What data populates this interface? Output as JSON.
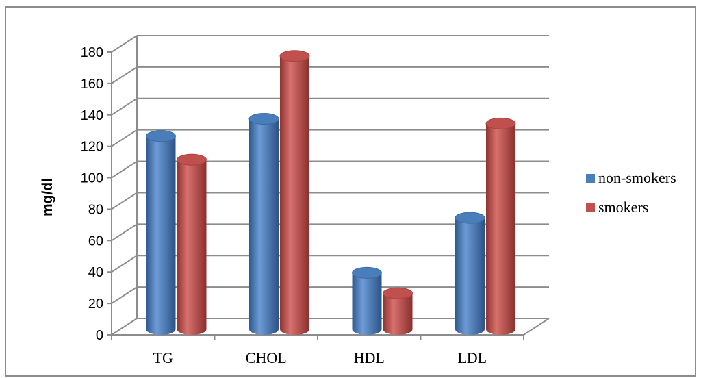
{
  "chart_data": {
    "type": "bar",
    "style": "3d-cylinder",
    "categories": [
      "TG",
      "CHOL",
      "HDL",
      "LDL"
    ],
    "series": [
      {
        "name": "non-smokers",
        "values": [
          123,
          134,
          36,
          71
        ],
        "color": "#4a7ebb"
      },
      {
        "name": "smokers",
        "values": [
          108,
          174,
          23,
          131
        ],
        "color": "#c0504d"
      }
    ],
    "ylabel": "mg/dl",
    "xlabel": "",
    "title": "",
    "ylim": [
      0,
      180
    ],
    "yticks": [
      "0",
      "20",
      "40",
      "60",
      "80",
      "100",
      "120",
      "140",
      "160",
      "180"
    ],
    "grid": true,
    "legend_position": "right"
  }
}
